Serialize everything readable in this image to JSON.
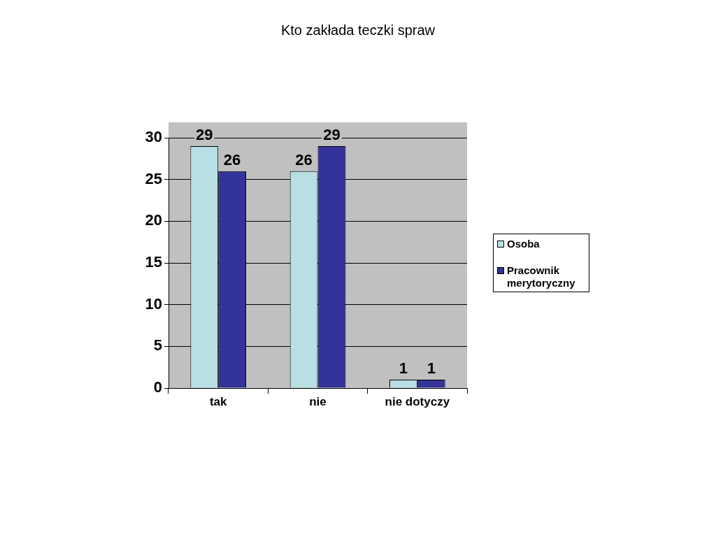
{
  "chart_data": {
    "type": "bar",
    "title": "Kto zakłada teczki spraw",
    "categories": [
      "tak",
      "nie",
      "nie dotyczy"
    ],
    "series": [
      {
        "name": "Osoba",
        "color": "#b8e0e4",
        "values": [
          29,
          26,
          1
        ]
      },
      {
        "name": "Pracownik merytoryczny",
        "color": "#333399",
        "values": [
          26,
          29,
          1
        ]
      }
    ],
    "ylim": [
      0,
      30
    ],
    "yticks": [
      0,
      5,
      10,
      15,
      20,
      25,
      30
    ],
    "grid": "y",
    "legend": "right",
    "data_labels": true
  }
}
